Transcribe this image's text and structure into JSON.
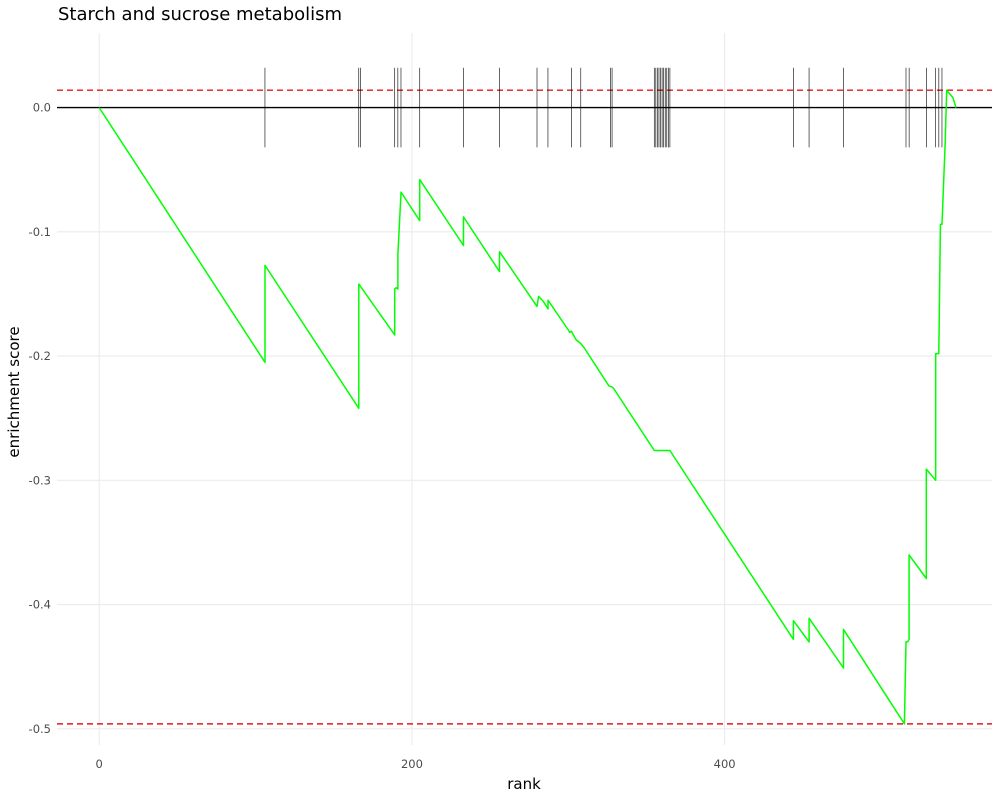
{
  "chart_data": {
    "type": "line",
    "title": "Starch and sucrose metabolism",
    "xlabel": "rank",
    "ylabel": "enrichment score",
    "xlim": [
      -27,
      571
    ],
    "ylim": [
      -0.513,
      0.06
    ],
    "x_ticks": [
      {
        "value": 0,
        "label": "0"
      },
      {
        "value": 200,
        "label": "200"
      },
      {
        "value": 400,
        "label": "400"
      }
    ],
    "y_ticks": [
      {
        "value": 0.0,
        "label": "0.0"
      },
      {
        "value": -0.1,
        "label": "-0.1"
      },
      {
        "value": -0.2,
        "label": "-0.2"
      },
      {
        "value": -0.3,
        "label": "-0.3"
      },
      {
        "value": -0.4,
        "label": "-0.4"
      },
      {
        "value": -0.5,
        "label": "-0.5"
      }
    ],
    "grid": true,
    "baseline": 0,
    "thresholds": [
      0.014,
      -0.496
    ],
    "colors": {
      "curve": "#00ff00",
      "threshold": "#e41a1c",
      "baseline": "#000000",
      "hits": "#000000",
      "grid": "#ebebeb"
    },
    "hit_ranks": [
      106,
      166,
      167,
      189,
      191,
      193,
      205,
      233,
      256,
      280,
      287,
      302,
      308,
      327,
      328,
      355,
      356,
      357,
      358,
      359,
      360,
      361,
      362,
      363,
      364,
      365,
      444,
      454,
      476,
      516,
      518,
      529,
      535,
      537,
      539
    ],
    "series": [
      {
        "x": [
          0,
          106,
          106,
          166,
          166,
          189,
          189,
          190,
          191,
          191,
          193,
          193,
          205,
          205,
          233,
          233,
          256,
          256,
          280,
          281,
          284,
          287,
          287,
          300,
          301,
          302,
          305,
          308,
          310,
          326,
          328,
          329,
          355,
          365,
          444,
          444,
          454,
          454,
          476,
          476,
          515,
          516,
          517,
          518,
          518,
          529,
          529,
          535,
          535,
          537,
          538,
          539,
          541,
          542,
          546,
          548
        ],
        "y": [
          0.0,
          -0.205,
          -0.127,
          -0.242,
          -0.142,
          -0.183,
          -0.146,
          -0.145,
          -0.146,
          -0.118,
          -0.069,
          -0.068,
          -0.091,
          -0.058,
          -0.111,
          -0.088,
          -0.132,
          -0.116,
          -0.16,
          -0.152,
          -0.156,
          -0.162,
          -0.155,
          -0.179,
          -0.181,
          -0.18,
          -0.187,
          -0.19,
          -0.193,
          -0.224,
          -0.225,
          -0.226,
          -0.276,
          -0.276,
          -0.428,
          -0.413,
          -0.43,
          -0.411,
          -0.451,
          -0.42,
          -0.496,
          -0.43,
          -0.43,
          -0.428,
          -0.36,
          -0.379,
          -0.291,
          -0.3,
          -0.198,
          -0.198,
          -0.094,
          -0.094,
          -0.03,
          0.014,
          0.008,
          0.0
        ]
      }
    ]
  }
}
